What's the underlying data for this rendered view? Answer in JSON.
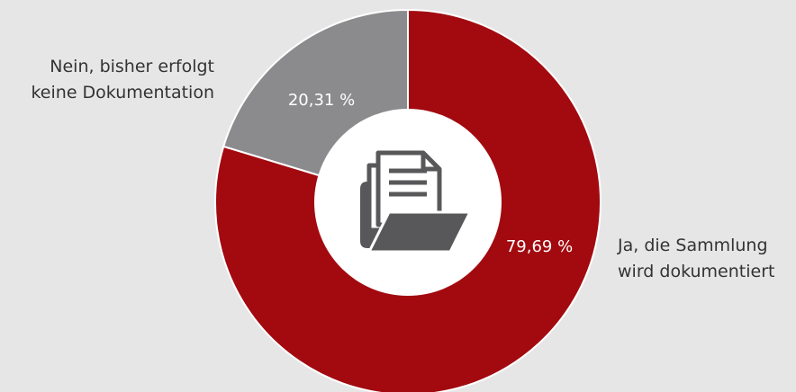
{
  "chart_data": {
    "type": "donut",
    "title": "",
    "slices": [
      {
        "label_lines": [
          "Ja, die Sammlung",
          "wird dokumentiert"
        ],
        "value": 79.69,
        "value_label": "79,69 %",
        "color": "#a20a10"
      },
      {
        "label_lines": [
          "Nein, bisher erfolgt",
          "keine Dokumentation"
        ],
        "value": 20.31,
        "value_label": "20,31 %",
        "color": "#8b8b8d"
      }
    ],
    "start_angle_deg": 0,
    "direction": "clockwise",
    "center_icon": "document-folder-icon",
    "center_color": "#ffffff",
    "icon_color": "#58585a",
    "separator_color": "#ffffff"
  }
}
